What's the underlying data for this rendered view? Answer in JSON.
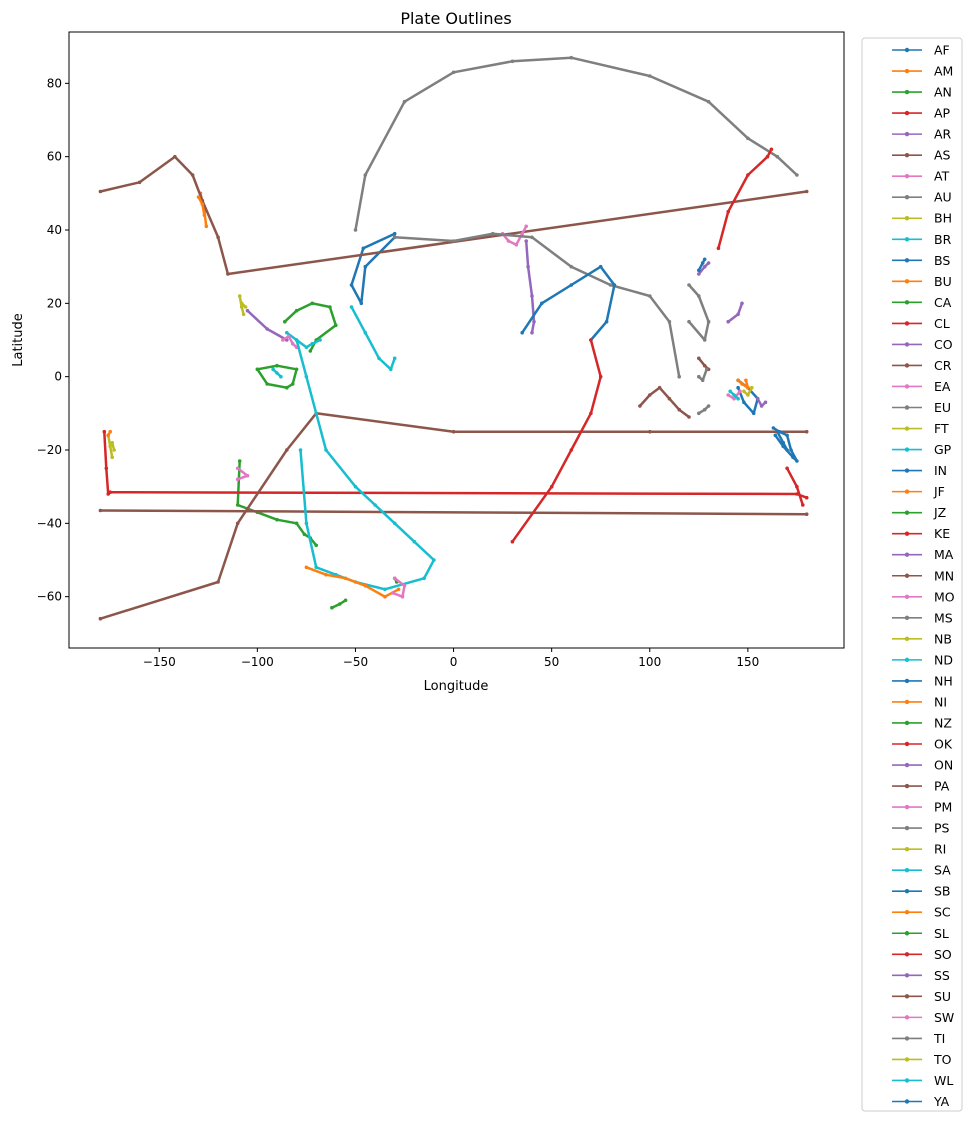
{
  "chart_data": {
    "type": "line",
    "title": "Plate Outlines",
    "xlabel": "Longitude",
    "ylabel": "Latitude",
    "xlim": [
      -196,
      199
    ],
    "ylim": [
      -74,
      94
    ],
    "xticks": [
      -150,
      -100,
      -50,
      0,
      50,
      100,
      150
    ],
    "yticks": [
      -60,
      -40,
      -20,
      0,
      20,
      40,
      60,
      80
    ],
    "grid": false,
    "legend_position": "outside-right",
    "colors": [
      "#1f77b4",
      "#ff7f0e",
      "#2ca02c",
      "#d62728",
      "#9467bd",
      "#8c564b",
      "#e377c2",
      "#7f7f7f",
      "#bcbd22",
      "#17becf"
    ],
    "series": [
      {
        "name": "AF",
        "x": [
          -30,
          -45,
          -47,
          -52,
          -46,
          -30
        ],
        "y": [
          38,
          30,
          20,
          25,
          35,
          39
        ]
      },
      {
        "name": "AM",
        "x": [
          -129,
          -127,
          -126
        ],
        "y": [
          50,
          45,
          41
        ]
      },
      {
        "name": "AN",
        "x": [
          -109,
          -110,
          -100,
          -90,
          -80,
          -76,
          -73,
          -70
        ],
        "y": [
          -23,
          -35,
          -37,
          -39,
          -40,
          -43,
          -44,
          -46
        ]
      },
      {
        "name": "AP",
        "x": [
          -178,
          -177,
          -176
        ],
        "y": [
          -15,
          -25,
          -32
        ]
      },
      {
        "name": "AR",
        "x": [
          37,
          38,
          40,
          41,
          40
        ],
        "y": [
          37,
          30,
          22,
          15,
          12
        ]
      },
      {
        "name": "AS",
        "x": [
          -180,
          -160,
          -142,
          -133,
          -128,
          -120,
          -115,
          180
        ],
        "y": [
          50.5,
          53,
          60,
          55,
          48,
          38,
          28,
          50.5
        ]
      },
      {
        "name": "AT",
        "x": [
          25,
          28,
          32,
          35,
          37
        ],
        "y": [
          39,
          37,
          36,
          39,
          41
        ]
      },
      {
        "name": "AU",
        "x": [
          -30,
          0,
          20,
          40,
          60,
          80,
          100,
          110,
          115
        ],
        "y": [
          38,
          37,
          39,
          38,
          30,
          25,
          22,
          15,
          0
        ]
      },
      {
        "name": "BH",
        "x": [
          -109,
          -108,
          -107
        ],
        "y": [
          22,
          19,
          17
        ]
      },
      {
        "name": "BR",
        "x": [
          -52,
          -45,
          -38,
          -32,
          -30
        ],
        "y": [
          19,
          12,
          5,
          2,
          5
        ]
      },
      {
        "name": "BS",
        "x": [
          145,
          150,
          155,
          153,
          148,
          145
        ],
        "y": [
          -1,
          -3,
          -6,
          -10,
          -7,
          -3
        ]
      },
      {
        "name": "BU",
        "x": [
          145,
          147,
          150,
          149
        ],
        "y": [
          -1,
          -2,
          -3,
          -1
        ]
      },
      {
        "name": "CA",
        "x": [
          -86,
          -80,
          -72,
          -63,
          -60,
          -70,
          -73
        ],
        "y": [
          15,
          18,
          20,
          19,
          14,
          10,
          7
        ]
      },
      {
        "name": "CL",
        "x": [
          -175,
          175,
          180
        ],
        "y": [
          -31.5,
          -32,
          -33
        ]
      },
      {
        "name": "CO",
        "x": [
          -105,
          -95,
          -85
        ],
        "y": [
          18,
          13,
          10
        ]
      },
      {
        "name": "CR",
        "x": [
          -180,
          180
        ],
        "y": [
          -36.5,
          -37.5
        ]
      },
      {
        "name": "EA",
        "x": [
          -110,
          -105,
          -110
        ],
        "y": [
          -25,
          -27,
          -28
        ]
      },
      {
        "name": "EU",
        "x": [
          -50,
          -45,
          -25,
          0,
          30,
          60,
          100,
          130,
          150,
          165,
          175
        ],
        "y": [
          40,
          55,
          75,
          83,
          86,
          87,
          82,
          75,
          65,
          60,
          55
        ]
      },
      {
        "name": "FT",
        "x": [
          -176,
          -175,
          -174
        ],
        "y": [
          -16,
          -19,
          -22
        ]
      },
      {
        "name": "GP",
        "x": [
          -92,
          -90,
          -88
        ],
        "y": [
          2,
          1,
          0
        ]
      },
      {
        "name": "IN",
        "x": [
          35,
          45,
          60,
          75,
          82,
          78,
          70
        ],
        "y": [
          12,
          20,
          25,
          30,
          25,
          15,
          10
        ]
      },
      {
        "name": "JF",
        "x": [
          -130,
          -128,
          -127
        ],
        "y": [
          49,
          47,
          44
        ]
      },
      {
        "name": "JZ",
        "x": [
          -30,
          -29
        ],
        "y": [
          -55,
          -56
        ]
      },
      {
        "name": "KE",
        "x": [
          170,
          175,
          178
        ],
        "y": [
          -25,
          -30,
          -35
        ]
      },
      {
        "name": "MA",
        "x": [
          140,
          145,
          147
        ],
        "y": [
          15,
          17,
          20
        ]
      },
      {
        "name": "MN",
        "x": [
          125,
          128,
          130
        ],
        "y": [
          5,
          3,
          2
        ]
      },
      {
        "name": "MO",
        "x": [
          140,
          143,
          146
        ],
        "y": [
          -5,
          -6,
          -4
        ]
      },
      {
        "name": "MS",
        "x": [
          125,
          127,
          129
        ],
        "y": [
          0,
          -1,
          2
        ]
      },
      {
        "name": "NB",
        "x": [
          148,
          150,
          152
        ],
        "y": [
          -4,
          -5,
          -3
        ]
      },
      {
        "name": "ND",
        "x": [
          -85,
          -80,
          -75,
          -72,
          -68
        ],
        "y": [
          12,
          10,
          8,
          9,
          10
        ]
      },
      {
        "name": "NH",
        "x": [
          165,
          168,
          170
        ],
        "y": [
          -15,
          -18,
          -20
        ]
      },
      {
        "name": "NI",
        "x": [
          -175,
          -176
        ],
        "y": [
          -15,
          -16
        ]
      },
      {
        "name": "NZ",
        "x": [
          -100,
          -90,
          -80,
          -82,
          -85,
          -95,
          -100
        ],
        "y": [
          2,
          3,
          2,
          -2,
          -3,
          -2,
          2
        ]
      },
      {
        "name": "OK",
        "x": [
          135,
          140,
          150,
          160,
          162
        ],
        "y": [
          35,
          45,
          55,
          60,
          62
        ]
      },
      {
        "name": "ON",
        "x": [
          125,
          128,
          130
        ],
        "y": [
          28,
          30,
          31
        ]
      },
      {
        "name": "PA",
        "x": [
          -180,
          -120,
          -110,
          -85,
          -70,
          0,
          100,
          180
        ],
        "y": [
          -66,
          -56,
          -40,
          -20,
          -10,
          -15,
          -15,
          -15
        ]
      },
      {
        "name": "PM",
        "x": [
          -87,
          -84,
          -82,
          -80
        ],
        "y": [
          10,
          11,
          9,
          8
        ]
      },
      {
        "name": "PS",
        "x": [
          120,
          125,
          130,
          128,
          120
        ],
        "y": [
          25,
          22,
          15,
          10,
          15
        ]
      },
      {
        "name": "RI",
        "x": [
          -108,
          -106
        ],
        "y": [
          20,
          19
        ]
      },
      {
        "name": "SA",
        "x": [
          -80,
          -75,
          -70,
          -65,
          -50,
          -40,
          -30,
          -20,
          -10,
          -15,
          -35,
          -50,
          -60,
          -70,
          -75,
          -78
        ],
        "y": [
          10,
          0,
          -10,
          -20,
          -30,
          -35,
          -40,
          -45,
          -50,
          -55,
          -58,
          -56,
          -54,
          -52,
          -40,
          -20
        ]
      },
      {
        "name": "SB",
        "x": [
          163,
          166,
          170,
          172,
          175,
          173,
          168,
          164
        ],
        "y": [
          -14,
          -15,
          -16,
          -20,
          -23,
          -22,
          -19,
          -16
        ]
      },
      {
        "name": "SC",
        "x": [
          -75,
          -65,
          -55,
          -45,
          -35,
          -28
        ],
        "y": [
          -52,
          -54,
          -55,
          -57,
          -60,
          -58
        ]
      },
      {
        "name": "SL",
        "x": [
          -62,
          -58,
          -55
        ],
        "y": [
          -63,
          -62,
          -61
        ]
      },
      {
        "name": "SO",
        "x": [
          30,
          50,
          60,
          70,
          75,
          70
        ],
        "y": [
          -45,
          -30,
          -20,
          -10,
          0,
          10
        ]
      },
      {
        "name": "SS",
        "x": [
          155,
          157,
          159
        ],
        "y": [
          -6,
          -8,
          -7
        ]
      },
      {
        "name": "SU",
        "x": [
          95,
          100,
          105,
          110,
          115,
          120
        ],
        "y": [
          -8,
          -5,
          -3,
          -6,
          -9,
          -11
        ]
      },
      {
        "name": "SW",
        "x": [
          -30,
          -25,
          -26,
          -31
        ],
        "y": [
          -55,
          -57,
          -60,
          -59
        ]
      },
      {
        "name": "TI",
        "x": [
          125,
          128,
          130
        ],
        "y": [
          -10,
          -9,
          -8
        ]
      },
      {
        "name": "TO",
        "x": [
          -174,
          -173
        ],
        "y": [
          -18,
          -20
        ]
      },
      {
        "name": "WL",
        "x": [
          141,
          143,
          145
        ],
        "y": [
          -4,
          -5,
          -6
        ]
      },
      {
        "name": "YA",
        "x": [
          125,
          127,
          128
        ],
        "y": [
          29,
          31,
          32
        ]
      }
    ]
  }
}
